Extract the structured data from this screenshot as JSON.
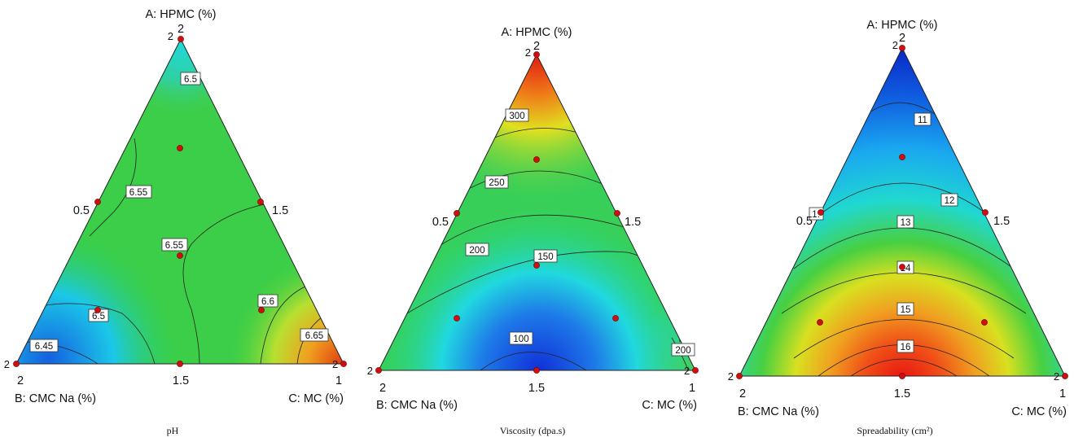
{
  "chart_data": [
    {
      "type": "ternary-contour",
      "vertex_labels": {
        "A": "A: HPMC (%)",
        "B": "B: CMC Na (%)",
        "C": "C: MC (%)"
      },
      "tick_labels": {
        "a_top": "2",
        "b_left": "2",
        "b_mid": "1.5",
        "c_right": "1",
        "left_mid": "0.5",
        "right_mid": "1.5"
      },
      "corner_values": {
        "top": "2",
        "left": "2",
        "right": "2"
      },
      "caption": "pH",
      "contours": [
        "6.5",
        "6.55",
        "6.55",
        "6.5",
        "6.45",
        "6.6",
        "6.65"
      ],
      "color_scale": "blue-low to red-high",
      "high_region": "C corner",
      "low_region": "B corner"
    },
    {
      "type": "ternary-contour",
      "vertex_labels": {
        "A": "A: HPMC (%)",
        "B": "B: CMC Na (%)",
        "C": "C: MC (%)"
      },
      "tick_labels": {
        "a_top": "2",
        "b_left": "2",
        "b_mid": "1.5",
        "c_right": "1",
        "left_mid": "0.5",
        "right_mid": "1.5"
      },
      "corner_values": {
        "top": "2",
        "left": "2",
        "right": "2"
      },
      "caption": "Viscosity (dpa.s)",
      "contours": [
        "300",
        "250",
        "200",
        "150",
        "100",
        "200"
      ],
      "color_scale": "blue-low to red-high",
      "high_region": "A corner",
      "low_region": "bottom center"
    },
    {
      "type": "ternary-contour",
      "vertex_labels": {
        "A": "A: HPMC (%)",
        "B": "B: CMC Na (%)",
        "C": "C: MC (%)"
      },
      "tick_labels": {
        "a_top": "2",
        "b_left": "2",
        "b_mid": "1.5",
        "c_right": "1",
        "left_mid": "0.5",
        "right_mid": "1.5"
      },
      "corner_values": {
        "top": "2",
        "left": "2",
        "right": "2"
      },
      "caption": "Spreadability (cm²)",
      "contours": [
        "11",
        "12",
        "13",
        "14",
        "15",
        "16",
        "1:"
      ],
      "color_scale": "blue-low to red-high",
      "high_region": "bottom center",
      "low_region": "A corner"
    }
  ]
}
